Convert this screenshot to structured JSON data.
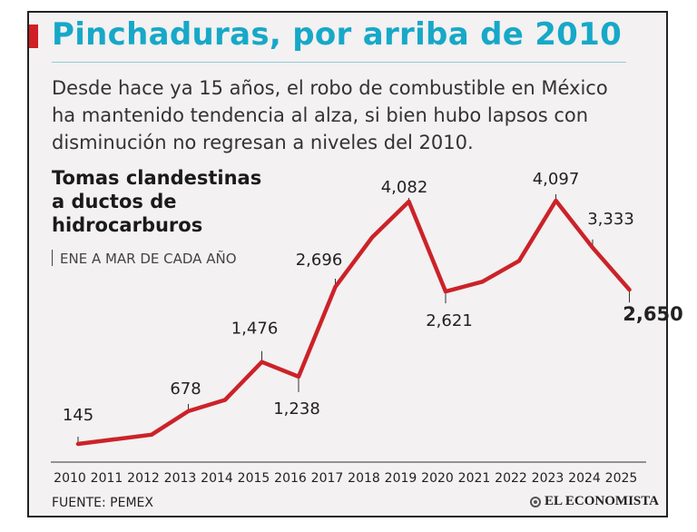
{
  "header": {
    "title": "Pinchaduras, por arriba de 2010",
    "subtitle": "Desde hace ya 15 años, el robo de combustible en México ha mantenido tendencia al alza, si bien hubo lapsos con disminución no regresan a niveles del 2010."
  },
  "chart_data": {
    "type": "line",
    "title": "Tomas clandestinas a ductos de hidrocarburos",
    "note": "ENE A MAR DE CADA AÑO",
    "x": [
      "2010",
      "2011",
      "2012",
      "2013",
      "2014",
      "2015",
      "2016",
      "2017",
      "2018",
      "2019",
      "2020",
      "2021",
      "2022",
      "2023",
      "2024",
      "2025"
    ],
    "series": [
      {
        "values": [
          145,
          220,
          295,
          678,
          860,
          1476,
          1238,
          2696,
          3500,
          4082,
          2621,
          2780,
          3120,
          4097,
          3333,
          2650
        ]
      }
    ],
    "labels": [
      {
        "year": "2010",
        "text": "145"
      },
      {
        "year": "2013",
        "text": "678"
      },
      {
        "year": "2015",
        "text": "1,476"
      },
      {
        "year": "2016",
        "text": "1,238"
      },
      {
        "year": "2017",
        "text": "2,696"
      },
      {
        "year": "2019",
        "text": "4,082"
      },
      {
        "year": "2020",
        "text": "2,621"
      },
      {
        "year": "2023",
        "text": "4,097"
      },
      {
        "year": "2024",
        "text": "3,333"
      },
      {
        "year": "2025",
        "text": "2,650"
      }
    ],
    "line_color": "#cc2229"
  },
  "footer": {
    "source": "FUENTE: PEMEX",
    "brand": "EL ECONOMISTA"
  }
}
